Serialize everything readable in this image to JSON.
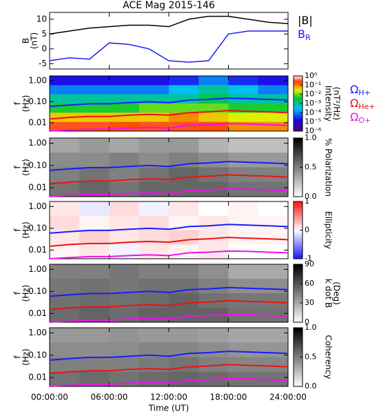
{
  "chart_data": [
    {
      "type": "line",
      "title": "ACE Mag 2015-146",
      "ylabel": [
        "B",
        "(nT)"
      ],
      "x": [
        0,
        2,
        4,
        6,
        8,
        10,
        12,
        14,
        16,
        18,
        20,
        22,
        24
      ],
      "ylim": [
        -6.8,
        12.3
      ],
      "yticks": [
        10,
        5,
        0,
        -5
      ],
      "series": [
        {
          "name": "|B|",
          "color": "#000000",
          "values": [
            5,
            6,
            7,
            7.5,
            8,
            8,
            7.5,
            10,
            11,
            11,
            10,
            9,
            8.5
          ]
        },
        {
          "name": "B",
          "subscript": "R",
          "color": "#1a1aff",
          "values": [
            -4,
            -3,
            -3.5,
            2,
            1.5,
            0,
            -4,
            -4.5,
            -4,
            5,
            6,
            6,
            6
          ]
        }
      ]
    },
    {
      "type": "heatmap",
      "ylabel": [
        "f",
        "(Hz)"
      ],
      "ylog": true,
      "ylim": [
        0.004,
        1.7
      ],
      "yticks": [
        {
          "value": 1,
          "label": "1.00"
        },
        {
          "value": 0.1,
          "label": "0.10"
        },
        {
          "value": 0.01,
          "label": "0.01"
        }
      ],
      "x": [
        0,
        2,
        4,
        6,
        8,
        10,
        12,
        14,
        16,
        18,
        20,
        22,
        24
      ],
      "series": [
        {
          "name": "Ω",
          "subscript": "H+",
          "color": "#1a1aff",
          "values": [
            0.06,
            0.07,
            0.08,
            0.08,
            0.09,
            0.1,
            0.09,
            0.12,
            0.13,
            0.15,
            0.14,
            0.13,
            0.12
          ]
        },
        {
          "name": "Ω",
          "subscript": "He+",
          "color": "#ee1111",
          "values": [
            0.015,
            0.018,
            0.02,
            0.02,
            0.023,
            0.025,
            0.023,
            0.03,
            0.033,
            0.038,
            0.035,
            0.033,
            0.03
          ]
        },
        {
          "name": "Ω",
          "subscript": "O+",
          "color": "#ee11ee",
          "values": [
            0.004,
            0.0045,
            0.005,
            0.005,
            0.0056,
            0.006,
            0.0056,
            0.0075,
            0.008,
            0.009,
            0.0088,
            0.008,
            0.0075
          ]
        }
      ],
      "colormap": "rainbow",
      "zlog": true,
      "zlim": [
        1e-06,
        1
      ],
      "zticks": [
        {
          "value": 1,
          "label": "10⁰"
        },
        {
          "value": 0.1,
          "label": "10⁻¹"
        },
        {
          "value": 0.01,
          "label": "10⁻²"
        },
        {
          "value": 0.001,
          "label": "10⁻³"
        },
        {
          "value": 0.0001,
          "label": "10⁻⁴"
        },
        {
          "value": 1e-05,
          "label": "10⁻⁵"
        },
        {
          "value": 1e-06,
          "label": "10⁻⁶"
        }
      ],
      "zlabel": [
        "Intensity",
        "(nT²/Hz)"
      ],
      "z": [
        [
          2e-05,
          2e-05,
          2e-05,
          2e-05,
          3e-05,
          0.0001,
          3e-05,
          2e-05
        ],
        [
          0.0001,
          0.0001,
          0.0001,
          0.0001,
          0.0003,
          0.001,
          0.0003,
          0.0001
        ],
        [
          0.001,
          0.001,
          0.001,
          0.001,
          0.001,
          0.003,
          0.001,
          0.001
        ],
        [
          0.005,
          0.005,
          0.005,
          0.01,
          0.01,
          0.01,
          0.005,
          0.005
        ],
        [
          0.05,
          0.05,
          0.05,
          0.05,
          0.1,
          0.05,
          0.03,
          0.03
        ],
        [
          0.3,
          0.3,
          0.2,
          0.3,
          0.3,
          0.2,
          0.1,
          0.1
        ]
      ]
    },
    {
      "type": "heatmap",
      "ylabel": [
        "f",
        "(Hz)"
      ],
      "ylog": true,
      "ylim": [
        0.004,
        1.7
      ],
      "yticks": [
        {
          "value": 1,
          "label": "1.00"
        },
        {
          "value": 0.1,
          "label": "0.10"
        },
        {
          "value": 0.01,
          "label": "0.01"
        }
      ],
      "colormap": "gray_r",
      "zlim": [
        0,
        1
      ],
      "zticks": [
        {
          "value": 1,
          "label": "1.0"
        },
        {
          "value": 0.5,
          "label": "0.5"
        },
        {
          "value": 0,
          "label": "0.0"
        }
      ],
      "zlabel": [
        "% Polarization"
      ],
      "z": [
        [
          0.35,
          0.4,
          0.35,
          0.4,
          0.4,
          0.3,
          0.25,
          0.25
        ],
        [
          0.45,
          0.45,
          0.5,
          0.45,
          0.5,
          0.45,
          0.4,
          0.4
        ],
        [
          0.5,
          0.55,
          0.5,
          0.55,
          0.6,
          0.55,
          0.5,
          0.5
        ],
        [
          0.55,
          0.6,
          0.55,
          0.6,
          0.6,
          0.6,
          0.55,
          0.55
        ]
      ]
    },
    {
      "type": "heatmap",
      "ylabel": [
        "f",
        "(Hz)"
      ],
      "ylog": true,
      "ylim": [
        0.004,
        1.7
      ],
      "yticks": [
        {
          "value": 1,
          "label": "1.00"
        },
        {
          "value": 0.1,
          "label": "0.10"
        },
        {
          "value": 0.01,
          "label": "0.01"
        }
      ],
      "colormap": "bwr",
      "zlim": [
        -1,
        1
      ],
      "zticks": [
        1,
        0,
        -1
      ],
      "zlabel": [
        "Ellipticity"
      ],
      "z": [
        [
          0.1,
          -0.1,
          0.15,
          -0.05,
          0.1,
          0,
          0.05,
          0
        ],
        [
          0.15,
          0.05,
          0.1,
          0.15,
          0.05,
          0.1,
          0.05,
          0.05
        ],
        [
          0.1,
          0.2,
          0.1,
          0.15,
          0.2,
          0.1,
          0.05,
          0.05
        ],
        [
          0.05,
          0.1,
          -0.05,
          0.1,
          0.05,
          0.1,
          0,
          0
        ]
      ]
    },
    {
      "type": "heatmap",
      "ylabel": [
        "f",
        "(Hz)"
      ],
      "ylog": true,
      "ylim": [
        0.004,
        1.7
      ],
      "yticks": [
        {
          "value": 1,
          "label": "1.00"
        },
        {
          "value": 0.1,
          "label": "0.10"
        },
        {
          "value": 0.01,
          "label": "0.01"
        }
      ],
      "colormap": "gray_r",
      "zlim": [
        0,
        90
      ],
      "zticks": [
        90,
        60,
        30,
        0
      ],
      "zlabel": [
        "k dot B",
        "(Deg)"
      ],
      "z": [
        [
          45,
          45,
          48,
          45,
          45,
          40,
          30,
          30
        ],
        [
          48,
          50,
          48,
          50,
          50,
          45,
          40,
          40
        ],
        [
          50,
          52,
          50,
          52,
          55,
          50,
          48,
          48
        ],
        [
          52,
          55,
          52,
          55,
          55,
          55,
          50,
          50
        ]
      ]
    },
    {
      "type": "heatmap",
      "ylabel": [
        "f",
        "(Hz)"
      ],
      "ylog": true,
      "ylim": [
        0.004,
        1.7
      ],
      "yticks": [
        {
          "value": 1,
          "label": "1.00"
        },
        {
          "value": 0.1,
          "label": "0.10"
        },
        {
          "value": 0.01,
          "label": "0.01"
        }
      ],
      "colormap": "gray_r",
      "zlim": [
        0,
        1
      ],
      "zticks": [
        {
          "value": 1,
          "label": "1.0"
        },
        {
          "value": 0.5,
          "label": "0.5"
        },
        {
          "value": 0,
          "label": "0.0"
        }
      ],
      "zlabel": [
        "Coherency"
      ],
      "z": [
        [
          0.4,
          0.4,
          0.42,
          0.4,
          0.4,
          0.38,
          0.35,
          0.35
        ],
        [
          0.45,
          0.45,
          0.45,
          0.48,
          0.48,
          0.45,
          0.42,
          0.42
        ],
        [
          0.5,
          0.5,
          0.5,
          0.52,
          0.55,
          0.5,
          0.48,
          0.48
        ],
        [
          0.55,
          0.58,
          0.55,
          0.58,
          0.6,
          0.58,
          0.55,
          0.55
        ]
      ],
      "xlim": [
        0,
        24
      ],
      "xticks": [
        {
          "value": 0,
          "label": "00:00:00"
        },
        {
          "value": 6,
          "label": "06:00:00"
        },
        {
          "value": 12,
          "label": "12:00:00"
        },
        {
          "value": 18,
          "label": "18:00:00"
        },
        {
          "value": 24,
          "label": "24:00:00"
        }
      ],
      "xlabel": "Time (UT)"
    }
  ]
}
